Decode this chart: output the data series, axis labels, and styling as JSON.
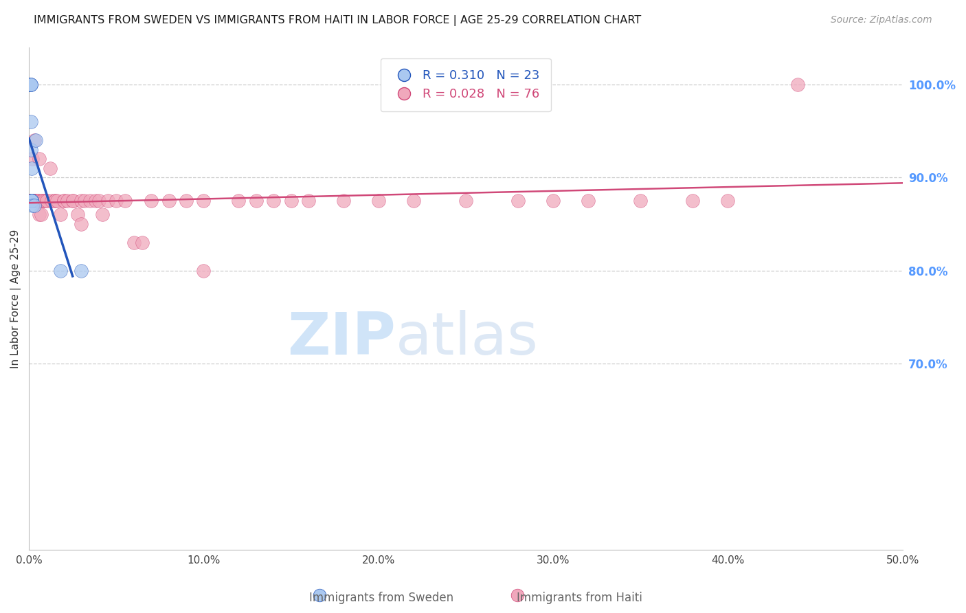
{
  "title": "IMMIGRANTS FROM SWEDEN VS IMMIGRANTS FROM HAITI IN LABOR FORCE | AGE 25-29 CORRELATION CHART",
  "source": "Source: ZipAtlas.com",
  "ylabel_left": "In Labor Force | Age 25-29",
  "xlim": [
    0.0,
    0.5
  ],
  "ylim": [
    0.5,
    1.04
  ],
  "legend_sweden_R": "0.310",
  "legend_sweden_N": "23",
  "legend_haiti_R": "0.028",
  "legend_haiti_N": "76",
  "sweden_color": "#aac8f0",
  "sweden_line_color": "#2255bb",
  "haiti_color": "#f0a8bc",
  "haiti_line_color": "#d04878",
  "grid_color": "#cccccc",
  "title_color": "#1a1a1a",
  "right_axis_color": "#5599ff",
  "watermark_zip": "ZIP",
  "watermark_atlas": "atlas",
  "watermark_color": "#d0e4f8",
  "sweden_points_x": [
    0.0005,
    0.0005,
    0.0005,
    0.0008,
    0.0008,
    0.001,
    0.001,
    0.001,
    0.0012,
    0.0012,
    0.0015,
    0.0015,
    0.0015,
    0.0015,
    0.0015,
    0.0015,
    0.0015,
    0.0015,
    0.002,
    0.003,
    0.004,
    0.018,
    0.03
  ],
  "sweden_points_y": [
    1.0,
    1.0,
    1.0,
    1.0,
    1.0,
    1.0,
    1.0,
    1.0,
    0.96,
    0.93,
    0.91,
    0.875,
    0.875,
    0.875,
    0.875,
    0.875,
    0.875,
    0.875,
    0.87,
    0.87,
    0.94,
    0.8,
    0.8
  ],
  "haiti_points_x": [
    0.0003,
    0.0005,
    0.0008,
    0.001,
    0.001,
    0.0012,
    0.0012,
    0.0015,
    0.0015,
    0.002,
    0.002,
    0.002,
    0.002,
    0.003,
    0.003,
    0.003,
    0.004,
    0.004,
    0.004,
    0.005,
    0.005,
    0.005,
    0.006,
    0.006,
    0.007,
    0.007,
    0.008,
    0.008,
    0.009,
    0.01,
    0.01,
    0.012,
    0.013,
    0.015,
    0.015,
    0.016,
    0.018,
    0.02,
    0.02,
    0.022,
    0.025,
    0.025,
    0.028,
    0.03,
    0.03,
    0.032,
    0.035,
    0.038,
    0.04,
    0.042,
    0.045,
    0.05,
    0.055,
    0.06,
    0.065,
    0.07,
    0.08,
    0.09,
    0.1,
    0.1,
    0.12,
    0.13,
    0.14,
    0.15,
    0.16,
    0.18,
    0.2,
    0.22,
    0.25,
    0.28,
    0.3,
    0.32,
    0.35,
    0.38,
    0.4,
    0.44
  ],
  "haiti_points_y": [
    0.875,
    0.875,
    0.875,
    0.875,
    0.875,
    0.875,
    0.875,
    0.875,
    0.875,
    0.875,
    0.875,
    0.875,
    0.92,
    0.875,
    0.875,
    0.94,
    0.875,
    0.875,
    0.875,
    0.875,
    0.875,
    0.875,
    0.92,
    0.86,
    0.86,
    0.875,
    0.875,
    0.875,
    0.875,
    0.875,
    0.875,
    0.91,
    0.875,
    0.875,
    0.875,
    0.875,
    0.86,
    0.875,
    0.875,
    0.875,
    0.875,
    0.875,
    0.86,
    0.875,
    0.85,
    0.875,
    0.875,
    0.875,
    0.875,
    0.86,
    0.875,
    0.875,
    0.875,
    0.83,
    0.83,
    0.875,
    0.875,
    0.875,
    0.875,
    0.8,
    0.875,
    0.875,
    0.875,
    0.875,
    0.875,
    0.875,
    0.875,
    0.875,
    0.875,
    0.875,
    0.875,
    0.875,
    0.875,
    0.875,
    0.875,
    1.0
  ]
}
